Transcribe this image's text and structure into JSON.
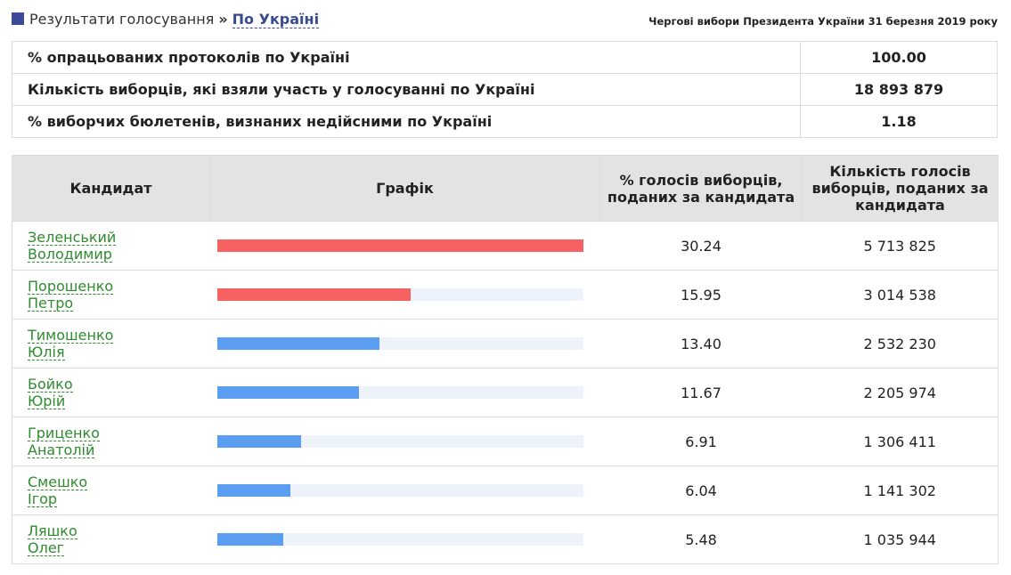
{
  "header": {
    "breadcrumb_root": "Результати голосування",
    "breadcrumb_sep": "»",
    "breadcrumb_current": "По Україні",
    "election_title": "Чергові вибори Президента України 31 березня 2019 року"
  },
  "summary": [
    {
      "label": "% опрацьованих протоколів по Україні",
      "value": "100.00"
    },
    {
      "label": "Кількість виборців, які взяли участь у голосуванні по Україні",
      "value": "18 893 879"
    },
    {
      "label": "% виборчих бюлетенів, визнаних недійсними по Україні",
      "value": "1.18"
    }
  ],
  "results": {
    "columns": {
      "candidate": "Кандидат",
      "chart": "Графік",
      "percent": "% голосів виборців, поданих за кандидата",
      "votes": "Кількість голосів виборців, поданих за кандидата"
    },
    "colors": {
      "leader": "#f66262",
      "other": "#5b9df0",
      "track": "#eef2fa"
    },
    "bar_max_percent": 30.24,
    "rows": [
      {
        "surname": "Зеленський",
        "name": "Володимир",
        "percent": "30.24",
        "votes": "5 713 825",
        "bar_value": 30.24,
        "bar_color": "leader"
      },
      {
        "surname": "Порошенко",
        "name": "Петро",
        "percent": "15.95",
        "votes": "3 014 538",
        "bar_value": 15.95,
        "bar_color": "leader"
      },
      {
        "surname": "Тимошенко",
        "name": "Юлія",
        "percent": "13.40",
        "votes": "2 532 230",
        "bar_value": 13.4,
        "bar_color": "other"
      },
      {
        "surname": "Бойко",
        "name": "Юрій",
        "percent": "11.67",
        "votes": "2 205 974",
        "bar_value": 11.67,
        "bar_color": "other"
      },
      {
        "surname": "Гриценко",
        "name": "Анатолій",
        "percent": "6.91",
        "votes": "1 306 411",
        "bar_value": 6.91,
        "bar_color": "other"
      },
      {
        "surname": "Смешко",
        "name": "Ігор",
        "percent": "6.04",
        "votes": "1 141 302",
        "bar_value": 6.04,
        "bar_color": "other"
      },
      {
        "surname": "Ляшко",
        "name": "Олег",
        "percent": "5.48",
        "votes": "1 035 944",
        "bar_value": 5.48,
        "bar_color": "other"
      }
    ]
  }
}
